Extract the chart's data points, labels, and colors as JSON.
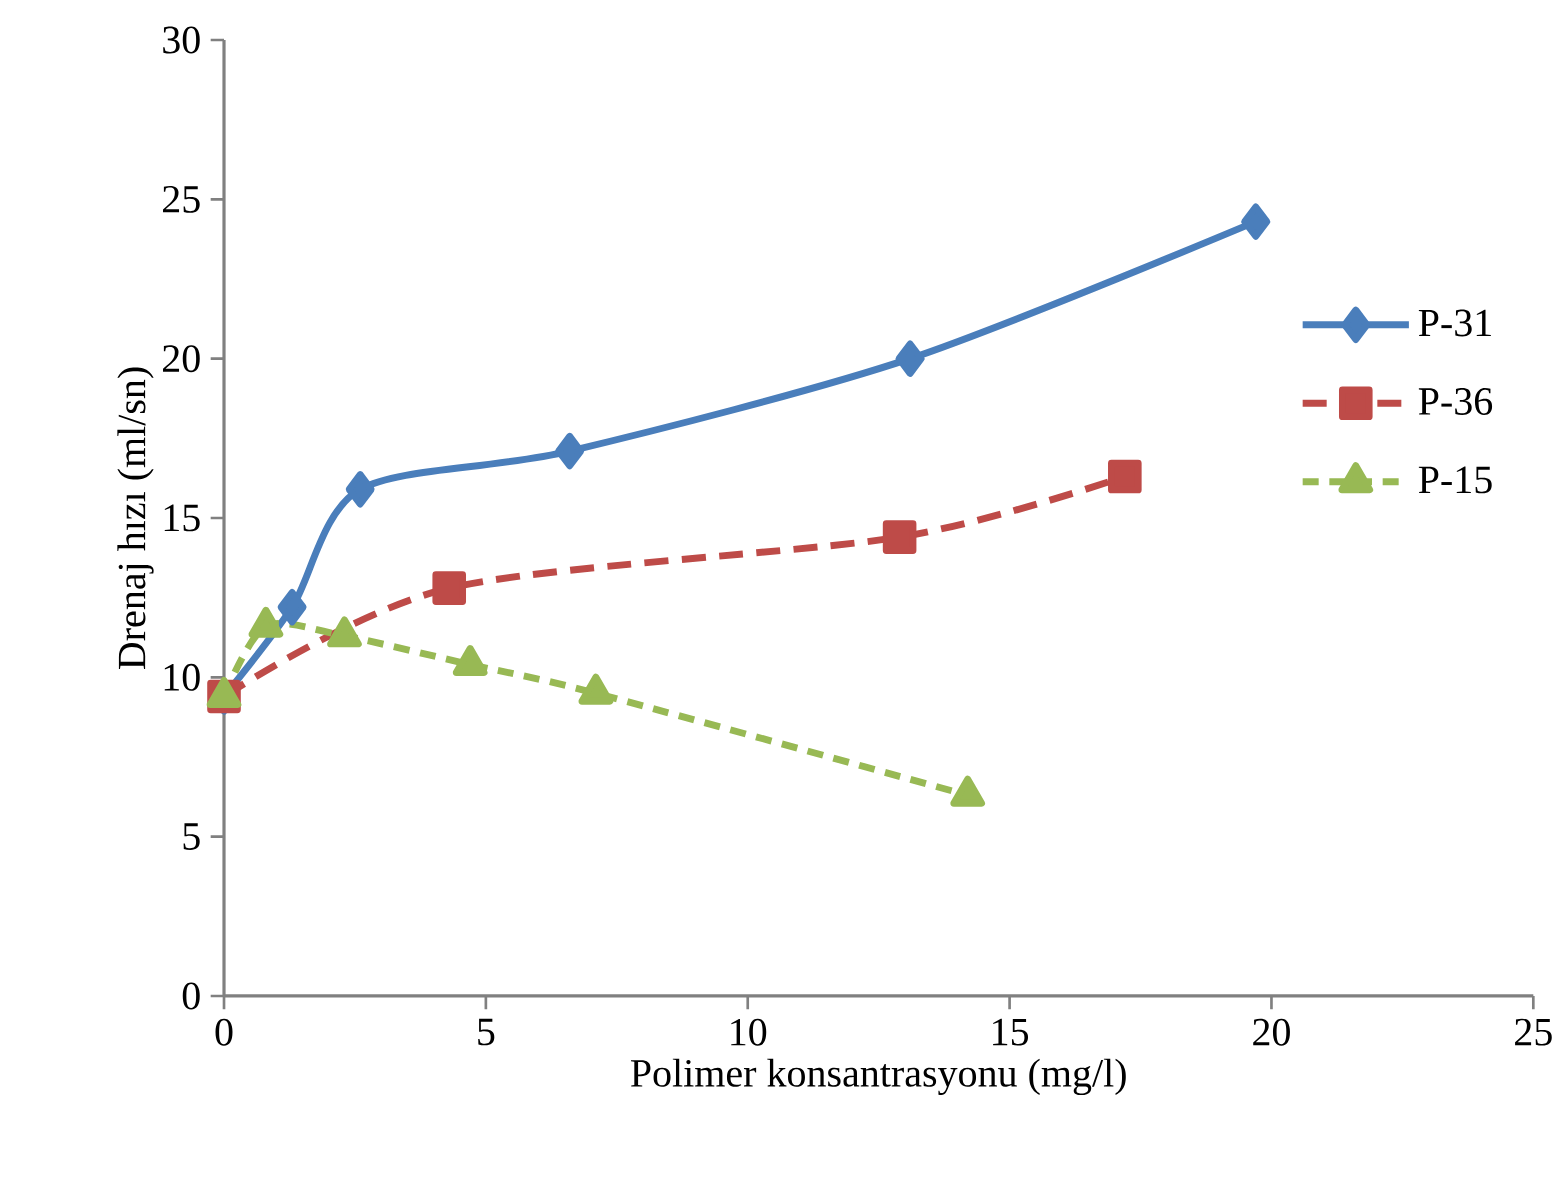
{
  "chart_data": {
    "type": "line",
    "xlabel": "Polimer konsantrasyonu (mg/l)",
    "ylabel": "Drenaj hızı (ml/sn)",
    "xlim": [
      0,
      25
    ],
    "xticks": [
      0,
      5,
      10,
      15,
      20,
      25
    ],
    "ylim": [
      0,
      30
    ],
    "yticks": [
      0,
      5,
      10,
      15,
      20,
      25,
      30
    ],
    "grid": false,
    "legend": "right",
    "series": [
      {
        "name": "P-31",
        "color": "#4a7ebb",
        "marker": "diamond",
        "line_style": "solid",
        "x": [
          0,
          1.3,
          2.6,
          6.6,
          13.1,
          19.7
        ],
        "values": [
          9.4,
          12.2,
          15.9,
          17.1,
          20.0,
          24.3
        ]
      },
      {
        "name": "P-36",
        "color": "#be4b48",
        "marker": "square",
        "line_style": "dashed",
        "x": [
          0,
          4.3,
          12.9,
          17.2
        ],
        "values": [
          9.4,
          12.8,
          14.4,
          16.3
        ]
      },
      {
        "name": "P-15",
        "color": "#98b954",
        "marker": "triangle",
        "line_style": "dotted",
        "x": [
          0,
          0.8,
          2.3,
          4.7,
          7.1,
          14.2
        ],
        "values": [
          9.4,
          11.6,
          11.3,
          10.4,
          9.5,
          6.3
        ]
      }
    ]
  }
}
